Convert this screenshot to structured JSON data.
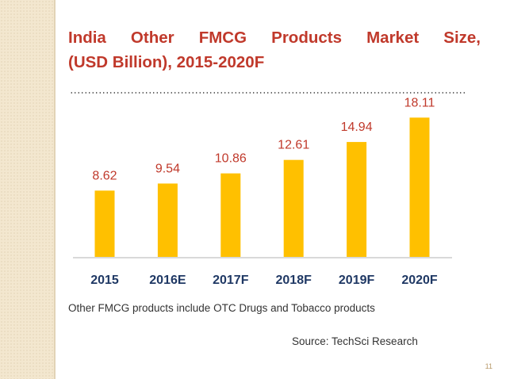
{
  "slide": {
    "title_line1": "India Other FMCG Products Market Size,",
    "title_line2": "(USD Billion), 2015-2020F",
    "note": "Other FMCG products include OTC Drugs and Tobacco products",
    "source": "Source: TechSci Research",
    "page_number": "11"
  },
  "chart_data": {
    "type": "bar",
    "categories": [
      "2015",
      "2016E",
      "2017F",
      "2018F",
      "2019F",
      "2020F"
    ],
    "values": [
      8.62,
      9.54,
      10.86,
      12.61,
      14.94,
      18.11
    ],
    "data_labels": [
      "8.62",
      "9.54",
      "10.86",
      "12.61",
      "14.94",
      "18.11"
    ],
    "title": "",
    "xlabel": "",
    "ylabel": "",
    "ylim": [
      0,
      20
    ],
    "grid": false,
    "legend": "none",
    "bar_color": "#ffc000",
    "label_color": "#c0392b",
    "category_color": "#1f3864"
  }
}
